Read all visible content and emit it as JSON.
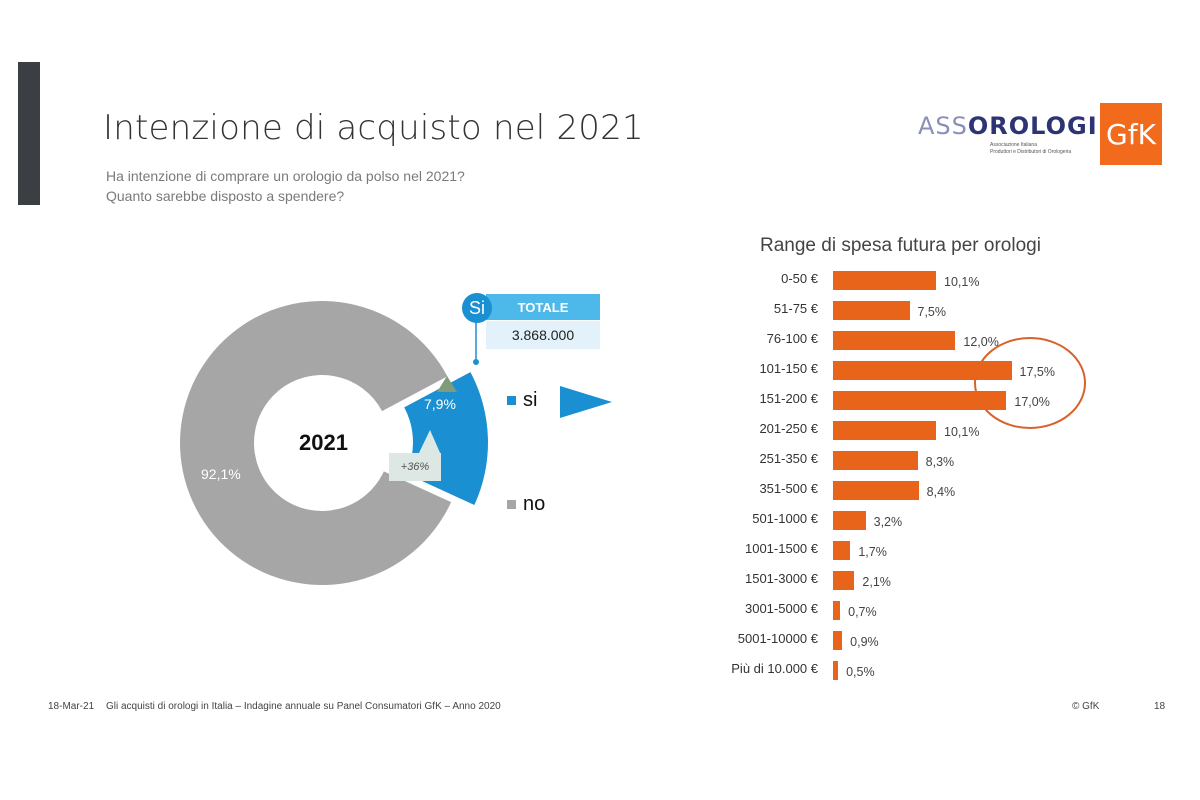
{
  "header": {
    "title": "Intenzione di acquisto nel 2021",
    "question_1": "Ha intenzione di comprare un orologio da polso nel 2021?",
    "question_2": "Quanto sarebbe disposto a spendere?"
  },
  "logos": {
    "assorologi_prefix": "ASS",
    "assorologi_main": "OROLOGI",
    "assorologi_sub_1": "Associazione Italiana",
    "assorologi_sub_2": "Produttori e Distributori di Orologeria",
    "gfk": "GfK"
  },
  "donut": {
    "center_label": "2021",
    "si_value": "7,9%",
    "no_value": "92,1%",
    "legend_si": "si",
    "legend_no": "no",
    "growth": "+36%",
    "totale_circle": "Si",
    "totale_header": "TOTALE",
    "totale_value": "3.868.000",
    "colors": {
      "si": "#1a8fd1",
      "no": "#a6a6a6",
      "up_arrow": "#7f9c7a"
    }
  },
  "chart_data": [
    {
      "type": "pie",
      "title": "",
      "center_label": "2021",
      "categories": [
        "si",
        "no"
      ],
      "values": [
        7.9,
        92.1
      ],
      "unit": "%",
      "legend": "right",
      "annotations": [
        "+36%",
        "Si TOTALE 3.868.000"
      ]
    },
    {
      "type": "bar",
      "orientation": "horizontal",
      "title": "Range di spesa futura per orologi",
      "categories": [
        "0-50 €",
        "51-75 €",
        "76-100 €",
        "101-150 €",
        "151-200 €",
        "201-250 €",
        "251-350 €",
        "351-500 €",
        "501-1000 €",
        "1001-1500 €",
        "1501-3000 €",
        "3001-5000 €",
        "5001-10000 €",
        "Più di 10.000 €"
      ],
      "values": [
        10.1,
        7.5,
        12.0,
        17.5,
        17.0,
        10.1,
        8.3,
        8.4,
        3.2,
        1.7,
        2.1,
        0.7,
        0.9,
        0.5
      ],
      "labels": [
        "10,1%",
        "7,5%",
        "12,0%",
        "17,5%",
        "17,0%",
        "10,1%",
        "8,3%",
        "8,4%",
        "3,2%",
        "1,7%",
        "2,1%",
        "0,7%",
        "0,9%",
        "0,5%"
      ],
      "color": "#e8641b",
      "highlight_color": "#d9622b",
      "highlighted_categories": [
        "101-150 €",
        "151-200 €"
      ],
      "grid": false
    }
  ],
  "footer": {
    "date": "18-Mar-21",
    "source": "Gli acquisti di orologi in Italia – Indagine annuale su Panel Consumatori GfK – Anno 2020",
    "copyright": "© GfK",
    "page": "18"
  }
}
